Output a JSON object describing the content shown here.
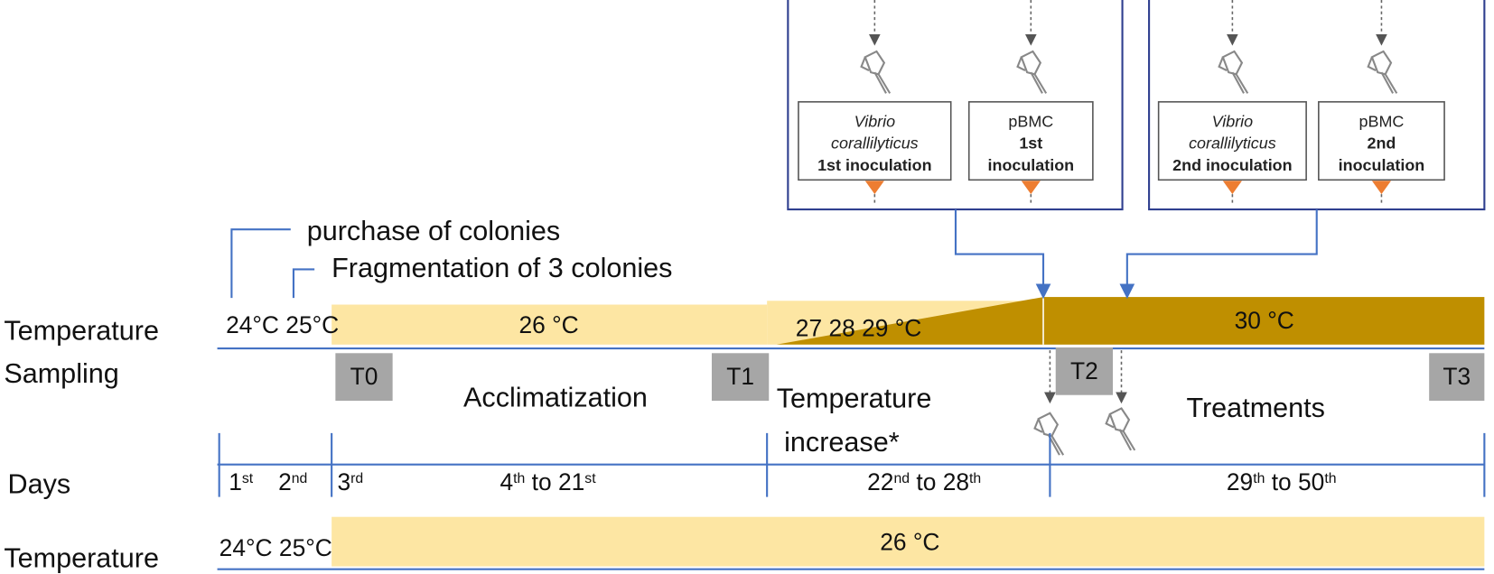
{
  "row_labels": {
    "temperature_top": "Temperature",
    "sampling": "Sampling",
    "days": "Days",
    "temperature_bottom": "Temperature"
  },
  "events": [
    "purchase of colonies",
    "Fragmentation of 3 colonies"
  ],
  "temperature_top": {
    "early": [
      "24°C",
      "25°C"
    ],
    "acclimatization": "26 °C",
    "ramp": [
      "27",
      "28",
      "29 °C"
    ],
    "treatment": "30 °C"
  },
  "sampling": [
    "T0",
    "T1",
    "T2",
    "T3"
  ],
  "phases": {
    "acclimatization": "Acclimatization",
    "increase": [
      "Temperature",
      "increase*"
    ],
    "treatments": "Treatments"
  },
  "days": [
    [
      "1",
      "st"
    ],
    [
      "2",
      "nd"
    ],
    [
      "3",
      "rd"
    ],
    [
      "4",
      "th",
      " to 21",
      "st"
    ],
    [
      "22",
      "nd",
      " to 28",
      "th"
    ],
    [
      "29",
      "th",
      " to 50",
      "th"
    ]
  ],
  "temperature_bottom": {
    "early": [
      "24°C",
      "25°C"
    ],
    "control": "26 °C"
  },
  "inoculations": [
    {
      "lines": [
        "Vibrio",
        "corallilyticus",
        "1st inoculation"
      ]
    },
    {
      "lines": [
        "pBMC",
        "1st",
        "inoculation"
      ]
    },
    {
      "lines": [
        "Vibrio",
        "corallilyticus",
        "2nd inoculation"
      ]
    },
    {
      "lines": [
        "pBMC",
        "2nd",
        "inoculation"
      ]
    }
  ]
}
